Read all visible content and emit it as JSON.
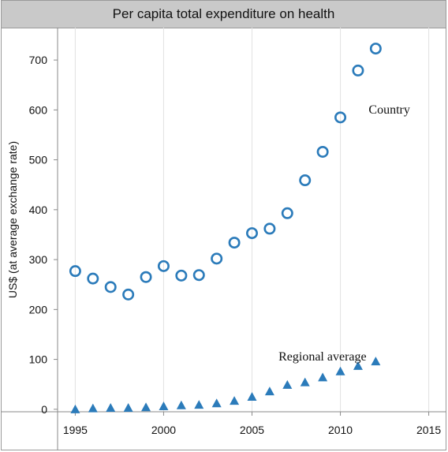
{
  "chart_data": {
    "type": "scatter",
    "title": "Per capita total expenditure on health",
    "ylabel": "US$ (at average exchange rate)",
    "xlabel": "",
    "xlim": [
      1994,
      2016
    ],
    "ylim": [
      -5,
      765
    ],
    "x_ticks": [
      1995,
      2000,
      2005,
      2010,
      2015
    ],
    "y_ticks": [
      0,
      100,
      200,
      300,
      400,
      500,
      600,
      700
    ],
    "grid": "vertical",
    "series": [
      {
        "name": "Country",
        "marker": "circle-open",
        "color": "#2b7bba",
        "points": [
          [
            1995,
            277
          ],
          [
            1996,
            262
          ],
          [
            1997,
            245
          ],
          [
            1998,
            230
          ],
          [
            1999,
            265
          ],
          [
            2000,
            287
          ],
          [
            2001,
            268
          ],
          [
            2002,
            269
          ],
          [
            2003,
            302
          ],
          [
            2004,
            334
          ],
          [
            2005,
            353
          ],
          [
            2006,
            362
          ],
          [
            2007,
            393
          ],
          [
            2008,
            459
          ],
          [
            2009,
            516
          ],
          [
            2010,
            585
          ],
          [
            2011,
            679
          ],
          [
            2012,
            723
          ]
        ]
      },
      {
        "name": "Regional average",
        "marker": "triangle",
        "color": "#2b7bba",
        "points": [
          [
            1995,
            0
          ],
          [
            1996,
            2
          ],
          [
            1997,
            3
          ],
          [
            1998,
            3
          ],
          [
            1999,
            4
          ],
          [
            2000,
            6
          ],
          [
            2001,
            8
          ],
          [
            2002,
            9
          ],
          [
            2003,
            12
          ],
          [
            2004,
            17
          ],
          [
            2005,
            25
          ],
          [
            2006,
            36
          ],
          [
            2007,
            49
          ],
          [
            2008,
            54
          ],
          [
            2009,
            64
          ],
          [
            2010,
            76
          ],
          [
            2011,
            87
          ],
          [
            2012,
            96
          ]
        ]
      }
    ],
    "annotations": [
      {
        "text": "Country",
        "x": 2011.6,
        "y": 593
      },
      {
        "text": "Regional average",
        "x": 2006.5,
        "y": 98
      }
    ]
  }
}
